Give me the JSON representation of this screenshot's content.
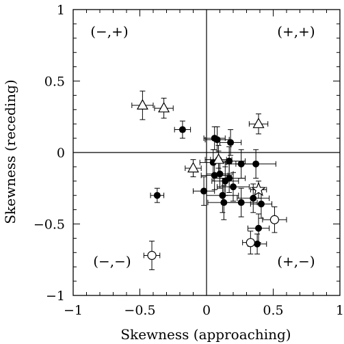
{
  "chart_data": {
    "type": "scatter",
    "xlabel": "Skewness (approaching)",
    "ylabel": "Skewness (receding)",
    "xlim": [
      -1,
      1
    ],
    "ylim": [
      -1,
      1
    ],
    "x_ticks": [
      -1,
      -0.5,
      0,
      0.5,
      1
    ],
    "y_ticks": [
      -1,
      -0.5,
      0,
      0.5,
      1
    ],
    "x_tick_labels": [
      "−1",
      "−0.5",
      "0",
      "0.5",
      "1"
    ],
    "y_tick_labels": [
      "−1",
      "−0.5",
      "0",
      "0.5",
      "1"
    ],
    "reference_lines": {
      "x": 0,
      "y": 0
    },
    "quadrant_labels": [
      {
        "text": "(−,+)",
        "quadrant": "top-left"
      },
      {
        "text": "(+,+)",
        "quadrant": "top-right"
      },
      {
        "text": "(−,−)",
        "quadrant": "bottom-left"
      },
      {
        "text": "(+,−)",
        "quadrant": "bottom-right"
      }
    ],
    "series": [
      {
        "marker": "filled-circle",
        "points": [
          {
            "x": -0.18,
            "y": 0.16,
            "xerr": 0.06,
            "yerr": 0.06
          },
          {
            "x": -0.37,
            "y": -0.3,
            "xerr": 0.05,
            "yerr": 0.05
          },
          {
            "x": 0.06,
            "y": 0.1,
            "xerr": 0.08,
            "yerr": 0.08
          },
          {
            "x": 0.08,
            "y": 0.09,
            "xerr": 0.09,
            "yerr": 0.09
          },
          {
            "x": 0.18,
            "y": 0.07,
            "xerr": 0.08,
            "yerr": 0.09
          },
          {
            "x": 0.05,
            "y": -0.07,
            "xerr": 0.1,
            "yerr": 0.09
          },
          {
            "x": 0.09,
            "y": -0.05,
            "xerr": 0.1,
            "yerr": 0.1
          },
          {
            "x": 0.17,
            "y": -0.06,
            "xerr": 0.12,
            "yerr": 0.1
          },
          {
            "x": 0.26,
            "y": -0.08,
            "xerr": 0.12,
            "yerr": 0.1
          },
          {
            "x": 0.37,
            "y": -0.08,
            "xerr": 0.15,
            "yerr": 0.1
          },
          {
            "x": 0.06,
            "y": -0.16,
            "xerr": 0.1,
            "yerr": 0.1
          },
          {
            "x": 0.1,
            "y": -0.15,
            "xerr": 0.1,
            "yerr": 0.1
          },
          {
            "x": 0.14,
            "y": -0.2,
            "xerr": 0.1,
            "yerr": 0.1
          },
          {
            "x": 0.17,
            "y": -0.18,
            "xerr": 0.12,
            "yerr": 0.1
          },
          {
            "x": 0.2,
            "y": -0.24,
            "xerr": 0.12,
            "yerr": 0.1
          },
          {
            "x": -0.02,
            "y": -0.27,
            "xerr": 0.08,
            "yerr": 0.1
          },
          {
            "x": 0.12,
            "y": -0.3,
            "xerr": 0.12,
            "yerr": 0.12
          },
          {
            "x": 0.13,
            "y": -0.35,
            "xerr": 0.12,
            "yerr": 0.12
          },
          {
            "x": 0.26,
            "y": -0.35,
            "xerr": 0.12,
            "yerr": 0.1
          },
          {
            "x": 0.35,
            "y": -0.32,
            "xerr": 0.12,
            "yerr": 0.1
          },
          {
            "x": 0.41,
            "y": -0.36,
            "xerr": 0.08,
            "yerr": 0.1
          },
          {
            "x": 0.39,
            "y": -0.53,
            "xerr": 0.08,
            "yerr": 0.1
          },
          {
            "x": 0.38,
            "y": -0.64,
            "xerr": 0.07,
            "yerr": 0.07
          }
        ]
      },
      {
        "marker": "open-triangle",
        "points": [
          {
            "x": -0.48,
            "y": 0.33,
            "xerr": 0.08,
            "yerr": 0.1
          },
          {
            "x": -0.32,
            "y": 0.31,
            "xerr": 0.07,
            "yerr": 0.07
          },
          {
            "x": -0.1,
            "y": -0.11,
            "xerr": 0.06,
            "yerr": 0.06
          },
          {
            "x": 0.09,
            "y": -0.05,
            "xerr": 0.06,
            "yerr": 0.06
          },
          {
            "x": 0.39,
            "y": 0.2,
            "xerr": 0.07,
            "yerr": 0.07
          }
        ]
      },
      {
        "marker": "open-star",
        "points": [
          {
            "x": 0.39,
            "y": -0.26,
            "xerr": 0.06,
            "yerr": 0.06
          }
        ]
      },
      {
        "marker": "open-circle",
        "points": [
          {
            "x": -0.41,
            "y": -0.72,
            "xerr": 0.06,
            "yerr": 0.1
          },
          {
            "x": 0.51,
            "y": -0.47,
            "xerr": 0.09,
            "yerr": 0.09
          },
          {
            "x": 0.33,
            "y": -0.63,
            "xerr": 0.06,
            "yerr": 0.08
          }
        ]
      }
    ],
    "grid": false,
    "legend": false
  }
}
